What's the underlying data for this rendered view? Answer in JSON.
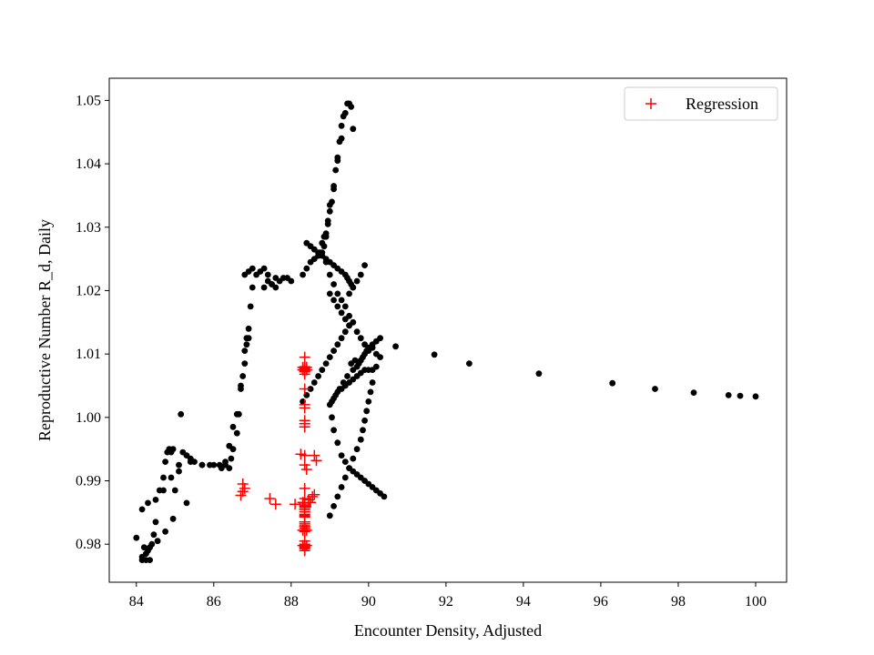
{
  "chart_data": {
    "type": "scatter",
    "title": "",
    "xlabel": "Encounter Density, Adjusted",
    "ylabel": "Reproductive Number R_d, Daily",
    "xlim": [
      83.3,
      100.8
    ],
    "ylim": [
      0.974,
      1.0535
    ],
    "xticks": [
      84,
      86,
      88,
      90,
      92,
      94,
      96,
      98,
      100
    ],
    "xtick_labels": [
      "84",
      "86",
      "88",
      "90",
      "92",
      "94",
      "96",
      "98",
      "100"
    ],
    "yticks": [
      0.98,
      0.99,
      1.0,
      1.01,
      1.02,
      1.03,
      1.04,
      1.05
    ],
    "ytick_labels": [
      "0.98",
      "0.99",
      "1.00",
      "1.01",
      "1.02",
      "1.03",
      "1.04",
      "1.05"
    ],
    "grid": false,
    "legend_position": "top-right",
    "series": [
      {
        "name": "",
        "in_legend": false,
        "marker": "dot",
        "color": "#000000",
        "x": [
          84.0,
          84.15,
          84.15,
          84.2,
          84.25,
          84.3,
          84.35,
          84.4,
          84.45,
          84.5,
          84.6,
          84.7,
          84.75,
          84.8,
          84.85,
          84.9,
          84.95,
          85.0,
          85.1,
          85.15,
          85.2,
          85.3,
          85.4,
          85.5,
          85.7,
          85.9,
          86.15,
          86.3,
          86.4,
          86.45,
          86.5,
          86.6,
          86.65,
          86.7,
          86.8,
          86.85,
          86.9,
          86.95,
          87.0,
          87.1,
          87.3,
          87.4,
          87.5,
          87.6,
          87.8,
          88.0,
          88.3,
          88.4,
          88.5,
          88.6,
          88.7,
          88.75,
          88.8,
          88.85,
          88.9,
          88.95,
          89.0,
          89.05,
          89.1,
          89.15,
          89.2,
          89.25,
          89.3,
          89.35,
          89.4,
          89.45,
          89.5,
          89.55,
          89.6,
          89.3,
          89.2,
          89.1,
          89.0,
          88.95,
          88.9,
          88.85,
          88.8,
          88.9,
          89.0,
          89.1,
          89.2,
          89.3,
          89.4,
          89.5,
          89.6,
          89.7,
          89.8,
          89.9,
          90.0,
          90.1,
          90.2,
          90.3,
          90.2,
          90.1,
          90.0,
          89.9,
          89.8,
          89.7,
          89.6,
          89.5,
          89.4,
          89.3,
          89.2,
          89.1,
          89.0,
          89.05,
          89.1,
          89.2,
          89.3,
          89.4,
          89.5,
          89.6,
          89.7,
          89.8,
          89.9,
          90.0,
          90.1,
          90.2,
          90.3,
          90.4,
          90.7,
          91.7,
          92.6,
          94.4,
          96.3,
          97.4,
          98.4,
          99.3,
          99.6,
          100.0,
          89.6,
          89.7,
          89.75,
          89.8,
          89.85,
          89.9,
          89.95,
          90.0,
          90.1,
          90.2,
          90.3,
          89.5,
          89.4,
          89.3,
          89.2,
          89.1,
          89.0,
          89.0,
          89.1,
          89.2,
          89.3,
          89.4,
          89.5,
          89.6,
          89.7,
          89.8,
          89.85,
          89.9,
          89.95,
          90.0,
          90.05,
          90.1,
          89.5,
          89.6,
          89.7,
          89.8,
          89.9,
          89.45,
          89.35,
          89.25,
          89.15,
          89.05,
          89.55,
          89.65,
          84.15,
          84.3,
          84.5,
          84.7,
          84.9,
          85.1,
          85.4,
          85.7,
          86.0,
          86.2,
          86.3,
          86.4,
          86.5,
          86.6,
          86.7,
          86.75,
          86.8,
          86.85,
          86.9,
          88.4,
          88.5,
          88.6,
          88.7,
          88.8,
          88.9,
          89.0,
          89.1,
          89.2,
          89.3,
          89.4,
          89.45,
          89.5,
          89.55,
          89.6,
          89.5,
          89.4,
          89.3,
          89.2,
          89.1,
          89.0,
          88.9,
          88.8,
          88.7,
          88.6,
          88.5,
          88.4,
          88.3,
          87.3,
          87.5,
          87.7,
          87.9,
          86.8,
          86.9,
          87.0,
          87.2,
          87.4,
          87.6,
          84.25,
          84.35,
          84.55,
          84.75,
          84.95,
          85.3
        ],
        "y": [
          0.981,
          0.978,
          0.9775,
          0.9795,
          0.9775,
          0.979,
          0.9775,
          0.98,
          0.9815,
          0.9835,
          0.9885,
          0.9905,
          0.993,
          0.9945,
          0.995,
          0.9945,
          0.995,
          0.9885,
          0.9915,
          1.0005,
          0.9945,
          0.994,
          0.9935,
          0.993,
          0.9925,
          0.9925,
          0.9925,
          0.9925,
          0.992,
          0.9935,
          0.995,
          0.9975,
          1.0005,
          1.005,
          1.0105,
          1.0125,
          1.014,
          1.0175,
          1.0205,
          1.0225,
          1.0235,
          1.0215,
          1.021,
          1.0205,
          1.022,
          1.0215,
          1.0225,
          1.0235,
          1.0245,
          1.025,
          1.0255,
          1.026,
          1.0275,
          1.0285,
          1.029,
          1.031,
          1.0325,
          1.034,
          1.036,
          1.039,
          1.041,
          1.0435,
          1.046,
          1.0475,
          1.048,
          1.0495,
          1.0495,
          1.049,
          1.0455,
          1.044,
          1.0405,
          1.0365,
          1.0335,
          1.0305,
          1.0285,
          1.027,
          1.026,
          1.0245,
          1.0225,
          1.021,
          1.0195,
          1.0185,
          1.0175,
          1.016,
          1.015,
          1.0135,
          1.0125,
          1.0115,
          1.0105,
          1.011,
          1.01,
          1.0095,
          1.008,
          1.0075,
          1.0075,
          1.0075,
          1.007,
          1.0065,
          1.006,
          1.0055,
          1.005,
          1.0045,
          1.004,
          1.003,
          1.002,
          1.0,
          0.998,
          0.996,
          0.994,
          0.993,
          0.992,
          0.9915,
          0.991,
          0.9905,
          0.99,
          0.9895,
          0.989,
          0.9885,
          0.988,
          0.9875,
          1.0112,
          1.0099,
          1.0085,
          1.0069,
          1.0054,
          1.0045,
          1.0039,
          1.0035,
          1.0034,
          1.0033,
          1.0075,
          1.008,
          1.0085,
          1.009,
          1.0095,
          1.01,
          1.0105,
          1.011,
          1.0115,
          1.012,
          1.0125,
          1.0145,
          1.0155,
          1.0165,
          1.0175,
          1.0185,
          1.0195,
          0.9845,
          0.986,
          0.9875,
          0.989,
          0.9905,
          0.992,
          0.9935,
          0.995,
          0.9965,
          0.998,
          0.9995,
          1.001,
          1.0025,
          1.004,
          1.0055,
          1.0195,
          1.0205,
          1.0215,
          1.0225,
          1.024,
          1.0065,
          1.0055,
          1.0045,
          1.0035,
          1.0025,
          1.0085,
          1.009,
          0.9855,
          0.9865,
          0.987,
          0.9885,
          0.9905,
          0.9925,
          0.993,
          0.9925,
          0.9925,
          0.992,
          0.993,
          0.9955,
          0.9985,
          1.0005,
          1.0045,
          1.0065,
          1.0085,
          1.0115,
          1.0125,
          1.0275,
          1.027,
          1.0265,
          1.026,
          1.0255,
          1.025,
          1.0245,
          1.024,
          1.0235,
          1.023,
          1.0225,
          1.022,
          1.0215,
          1.021,
          1.0205,
          1.0145,
          1.0135,
          1.0125,
          1.0115,
          1.0105,
          1.0095,
          1.0085,
          1.0075,
          1.0065,
          1.0055,
          1.0045,
          1.0035,
          1.0025,
          1.0205,
          1.021,
          1.0215,
          1.022,
          1.0225,
          1.023,
          1.0235,
          1.023,
          1.0225,
          1.022,
          0.9785,
          0.9795,
          0.9805,
          0.982,
          0.984,
          0.9865
        ]
      },
      {
        "name": "Regression",
        "in_legend": true,
        "marker": "plus",
        "color": "#ff0000",
        "x": [
          88.35,
          88.35,
          88.35,
          88.35,
          88.35,
          88.35,
          88.35,
          88.35,
          88.35,
          88.35,
          88.35,
          88.35,
          88.35,
          88.35,
          88.35,
          88.35,
          88.35,
          88.35,
          88.35,
          88.35,
          88.35,
          88.35,
          88.35,
          88.35,
          88.35,
          88.35,
          88.35,
          88.35,
          88.35,
          88.35,
          88.3,
          88.4,
          88.3,
          88.4,
          88.3,
          88.4,
          88.3,
          88.4,
          88.35,
          88.35,
          88.35,
          88.35,
          88.35,
          88.35,
          88.35,
          88.35,
          88.35,
          88.35,
          88.6,
          88.65,
          88.55,
          88.6,
          88.5,
          88.45,
          88.1,
          88.3,
          87.45,
          87.6,
          86.75,
          86.8,
          86.7,
          86.75,
          88.25,
          88.4
        ],
        "y": [
          1.0095,
          1.008,
          1.0075,
          1.0072,
          1.0068,
          1.0045,
          1.002,
          1.0015,
          0.9995,
          0.999,
          0.9985,
          0.994,
          0.9925,
          0.9888,
          0.9872,
          0.986,
          0.9855,
          0.9845,
          0.9835,
          0.9828,
          0.9825,
          0.982,
          0.9805,
          0.98,
          0.9797,
          0.9795,
          0.9793,
          0.979,
          1.0077,
          1.0073,
          1.0079,
          1.0079,
          1.0075,
          1.0075,
          0.9822,
          0.9822,
          0.9798,
          0.9798,
          0.9865,
          0.9862,
          0.9858,
          0.9855,
          0.9851,
          0.9847,
          0.9843,
          0.9835,
          0.9832,
          0.9829,
          0.994,
          0.9932,
          0.9875,
          0.9878,
          0.9866,
          0.987,
          0.9863,
          0.9866,
          0.9872,
          0.9863,
          0.9895,
          0.9888,
          0.9877,
          0.9883,
          0.9942,
          0.9918
        ]
      }
    ]
  }
}
